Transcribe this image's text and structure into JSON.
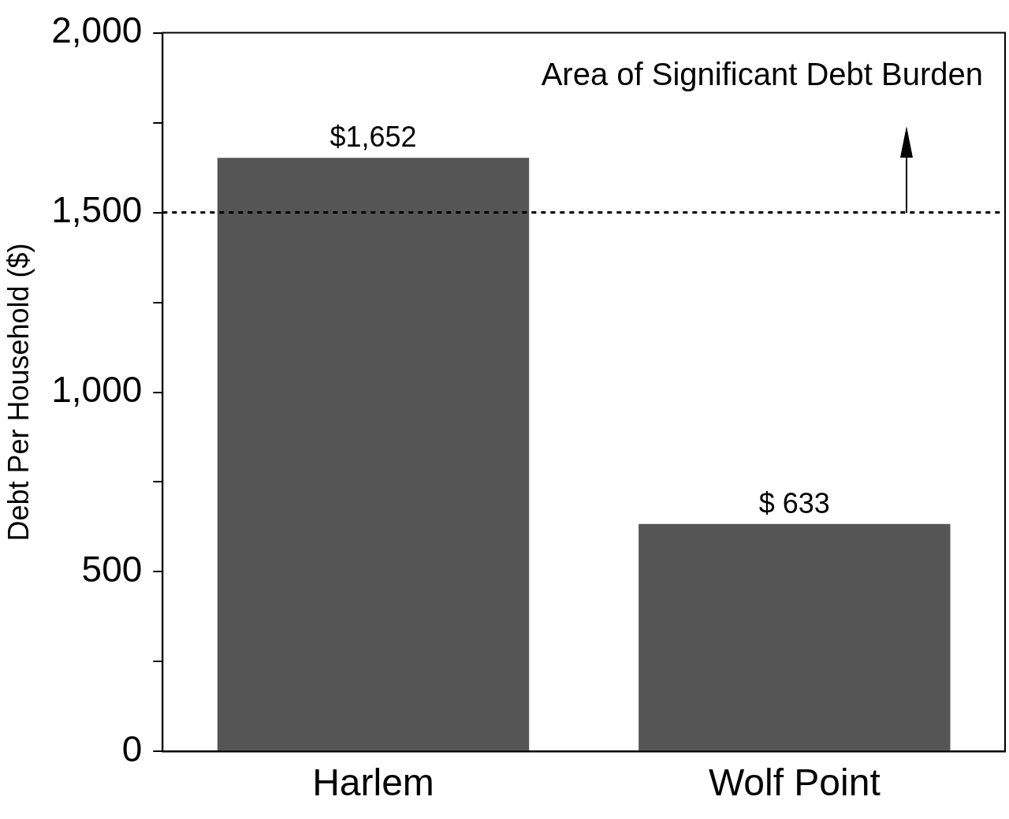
{
  "chart_data": {
    "type": "bar",
    "ylabel": "Debt Per Household ($)",
    "categories": [
      "Harlem",
      "Wolf Point"
    ],
    "values": [
      1652,
      633
    ],
    "value_labels": [
      "$1,652",
      "$ 633"
    ],
    "color": "#555555",
    "ylim": [
      0,
      2000
    ],
    "yticks": [
      0,
      {
        "value": 250,
        "label": null
      },
      500,
      {
        "value": 750,
        "label": null
      },
      {
        "value": 1000,
        "label": "1,000"
      },
      {
        "value": 1250,
        "label": null
      },
      {
        "value": 1500,
        "label": "1,500"
      },
      {
        "value": 1750,
        "label": null
      },
      {
        "value": 2000,
        "label": "2,000"
      }
    ],
    "ref_lines": [
      {
        "axis": "y",
        "value": 1500,
        "line_style": "dashed",
        "color": "#000000"
      }
    ],
    "annotations": [
      "Area of Significant Debt Burden"
    ],
    "grid": false,
    "legend": false
  }
}
